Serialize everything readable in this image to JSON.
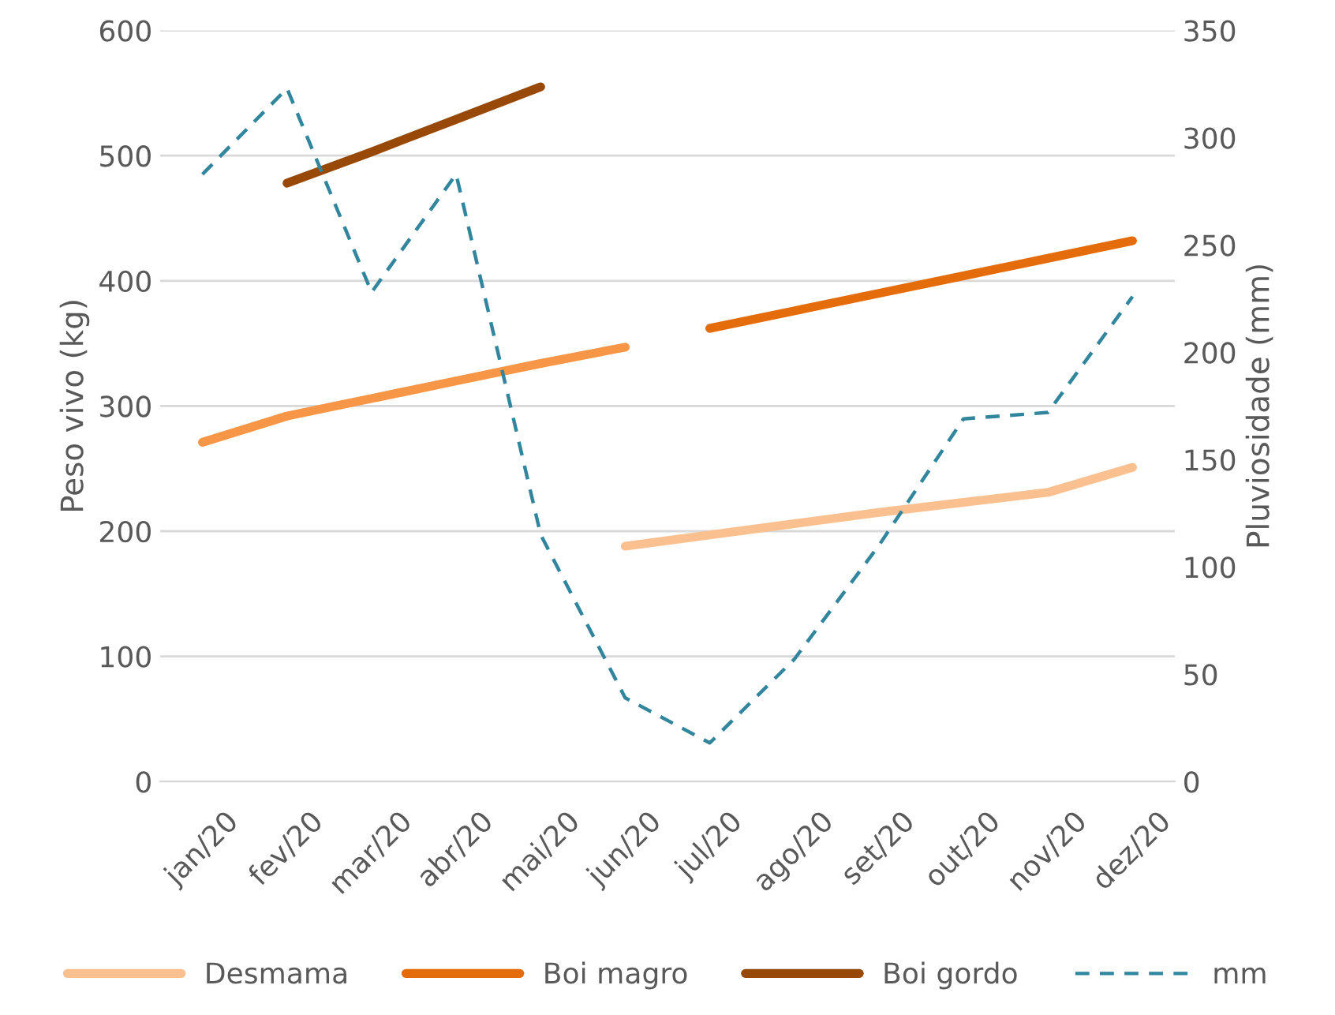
{
  "chart_data": {
    "type": "line",
    "ylabel": "Peso vivo (kg)",
    "y2label": "Pluviosidade (mm)",
    "categories": [
      "jan/20",
      "fev/20",
      "mar/20",
      "abr/20",
      "mai/20",
      "jun/20",
      "jul/20",
      "ago/20",
      "set/20",
      "out/20",
      "nov/20",
      "dez/20"
    ],
    "ylim": [
      0,
      600
    ],
    "yticks": [
      0,
      100,
      200,
      300,
      400,
      500,
      600
    ],
    "y2lim": [
      0,
      350
    ],
    "y2ticks": [
      0,
      50,
      100,
      150,
      200,
      250,
      300,
      350
    ],
    "grid": "y",
    "legend": "bottom",
    "series": [
      {
        "name": "Desmama",
        "color": "#fac090",
        "values": [
          null,
          null,
          null,
          null,
          null,
          188,
          197,
          206,
          215,
          223,
          231,
          251
        ]
      },
      {
        "color": "#f79646",
        "values": [
          271,
          292,
          306,
          320,
          334,
          347,
          null,
          null,
          null,
          null,
          null,
          null
        ]
      },
      {
        "name": "Boi magro",
        "color": "#e46c0a",
        "values": [
          null,
          null,
          null,
          null,
          null,
          null,
          362,
          376,
          390,
          404,
          418,
          432
        ]
      },
      {
        "name": "Boi gordo",
        "color": "#984807",
        "values": [
          null,
          478,
          503,
          529,
          555,
          null,
          null,
          null,
          null,
          null,
          null,
          null
        ]
      },
      {
        "name": "mm",
        "color": "#31859c",
        "axis": "y2",
        "line_style": "dashed",
        "values": [
          283,
          323,
          228,
          283,
          115,
          39,
          18,
          57,
          110,
          169,
          172,
          226
        ]
      }
    ]
  }
}
